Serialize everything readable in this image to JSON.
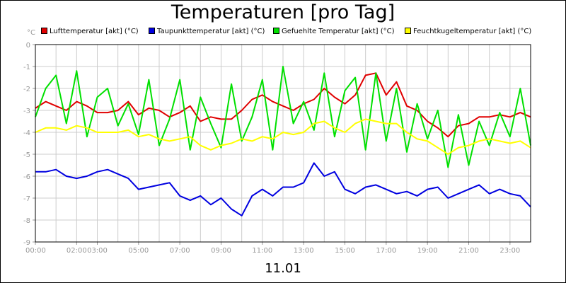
{
  "chart_data": {
    "type": "line",
    "title": "Temperaturen [pro Tag]",
    "ylabel": "°C",
    "xlabel": "11.01",
    "ylim": [
      -9,
      0
    ],
    "yticks": [
      0,
      -1,
      -2,
      -3,
      -4,
      -5,
      -6,
      -7,
      -8,
      -9
    ],
    "xlim": [
      0,
      24
    ],
    "xticks": [
      "00:00",
      "02:00",
      "03:00",
      "05:00",
      "07:00",
      "09:00",
      "11:00",
      "13:00",
      "15:00",
      "17:00",
      "19:00",
      "21:00",
      "23:00"
    ],
    "xtick_hours": [
      0,
      2,
      3,
      5,
      7,
      9,
      11,
      13,
      15,
      17,
      19,
      21,
      23
    ],
    "grid": true,
    "legend_position": "top",
    "series": [
      {
        "name": "Lufttemperatur [akt] (°C)",
        "color": "#e00000",
        "x": [
          0,
          0.5,
          1,
          1.5,
          2,
          2.5,
          3,
          3.5,
          4,
          4.5,
          5,
          5.5,
          6,
          6.5,
          7,
          7.5,
          8,
          8.5,
          9,
          9.5,
          10,
          10.5,
          11,
          11.5,
          12,
          12.5,
          13,
          13.5,
          14,
          14.5,
          15,
          15.5,
          16,
          16.5,
          17,
          17.5,
          18,
          18.5,
          19,
          19.5,
          20,
          20.5,
          21,
          21.5,
          22,
          22.5,
          23,
          23.5,
          24
        ],
        "values": [
          -2.9,
          -2.6,
          -2.8,
          -3.0,
          -2.6,
          -2.8,
          -3.1,
          -3.1,
          -3.0,
          -2.6,
          -3.2,
          -2.9,
          -3.0,
          -3.3,
          -3.1,
          -2.8,
          -3.5,
          -3.3,
          -3.4,
          -3.4,
          -3.0,
          -2.5,
          -2.3,
          -2.6,
          -2.8,
          -3.0,
          -2.7,
          -2.5,
          -2.0,
          -2.4,
          -2.7,
          -2.3,
          -1.4,
          -1.3,
          -2.3,
          -1.7,
          -2.8,
          -3.0,
          -3.5,
          -3.8,
          -4.2,
          -3.7,
          -3.6,
          -3.3,
          -3.3,
          -3.2,
          -3.3,
          -3.1,
          -3.3
        ]
      },
      {
        "name": "Taupunkttemperatur [akt] (°C)",
        "color": "#0000e0",
        "x": [
          0,
          0.5,
          1,
          1.5,
          2,
          2.5,
          3,
          3.5,
          4,
          4.5,
          5,
          5.5,
          6,
          6.5,
          7,
          7.5,
          8,
          8.5,
          9,
          9.5,
          10,
          10.5,
          11,
          11.5,
          12,
          12.5,
          13,
          13.5,
          14,
          14.5,
          15,
          15.5,
          16,
          16.5,
          17,
          17.5,
          18,
          18.5,
          19,
          19.5,
          20,
          20.5,
          21,
          21.5,
          22,
          22.5,
          23,
          23.5,
          24
        ],
        "values": [
          -5.8,
          -5.8,
          -5.7,
          -6.0,
          -6.1,
          -6.0,
          -5.8,
          -5.7,
          -5.9,
          -6.1,
          -6.6,
          -6.5,
          -6.4,
          -6.3,
          -6.9,
          -7.1,
          -6.9,
          -7.3,
          -7.0,
          -7.5,
          -7.8,
          -6.9,
          -6.6,
          -6.9,
          -6.5,
          -6.5,
          -6.3,
          -5.4,
          -6.0,
          -5.8,
          -6.6,
          -6.8,
          -6.5,
          -6.4,
          -6.6,
          -6.8,
          -6.7,
          -6.9,
          -6.6,
          -6.5,
          -7.0,
          -6.8,
          -6.6,
          -6.4,
          -6.8,
          -6.6,
          -6.8,
          -6.9,
          -7.4
        ]
      },
      {
        "name": "Gefuehlte Temperatur [akt] (°C)",
        "color": "#00e000",
        "x": [
          0,
          0.5,
          1,
          1.5,
          2,
          2.5,
          3,
          3.5,
          4,
          4.5,
          5,
          5.5,
          6,
          6.5,
          7,
          7.5,
          8,
          8.5,
          9,
          9.5,
          10,
          10.5,
          11,
          11.5,
          12,
          12.5,
          13,
          13.5,
          14,
          14.5,
          15,
          15.5,
          16,
          16.5,
          17,
          17.5,
          18,
          18.5,
          19,
          19.5,
          20,
          20.5,
          21,
          21.5,
          22,
          22.5,
          23,
          23.5,
          24
        ],
        "values": [
          -3.3,
          -2.0,
          -1.4,
          -3.6,
          -1.2,
          -4.2,
          -2.4,
          -2.0,
          -3.7,
          -2.7,
          -4.1,
          -1.6,
          -4.6,
          -3.4,
          -1.6,
          -4.8,
          -2.4,
          -3.6,
          -4.7,
          -1.8,
          -4.4,
          -3.3,
          -1.6,
          -4.8,
          -1.0,
          -3.6,
          -2.6,
          -3.9,
          -1.3,
          -4.2,
          -2.1,
          -1.5,
          -4.8,
          -1.3,
          -4.4,
          -2.0,
          -4.9,
          -2.7,
          -4.3,
          -3.0,
          -5.6,
          -3.2,
          -5.5,
          -3.5,
          -4.6,
          -3.1,
          -4.2,
          -2.0,
          -4.6
        ]
      },
      {
        "name": "Feuchtkugeltemperatur [akt] (°C)",
        "color": "#ffff00",
        "x": [
          0,
          0.5,
          1,
          1.5,
          2,
          2.5,
          3,
          3.5,
          4,
          4.5,
          5,
          5.5,
          6,
          6.5,
          7,
          7.5,
          8,
          8.5,
          9,
          9.5,
          10,
          10.5,
          11,
          11.5,
          12,
          12.5,
          13,
          13.5,
          14,
          14.5,
          15,
          15.5,
          16,
          16.5,
          17,
          17.5,
          18,
          18.5,
          19,
          19.5,
          20,
          20.5,
          21,
          21.5,
          22,
          22.5,
          23,
          23.5,
          24
        ],
        "values": [
          -4.0,
          -3.8,
          -3.8,
          -3.9,
          -3.7,
          -3.8,
          -4.0,
          -4.0,
          -4.0,
          -3.9,
          -4.2,
          -4.1,
          -4.3,
          -4.4,
          -4.3,
          -4.2,
          -4.6,
          -4.8,
          -4.6,
          -4.5,
          -4.3,
          -4.4,
          -4.2,
          -4.3,
          -4.0,
          -4.1,
          -4.0,
          -3.6,
          -3.5,
          -3.8,
          -4.0,
          -3.6,
          -3.4,
          -3.5,
          -3.6,
          -3.6,
          -4.0,
          -4.3,
          -4.4,
          -4.7,
          -5.0,
          -4.7,
          -4.6,
          -4.4,
          -4.3,
          -4.4,
          -4.5,
          -4.4,
          -4.7
        ]
      }
    ]
  }
}
